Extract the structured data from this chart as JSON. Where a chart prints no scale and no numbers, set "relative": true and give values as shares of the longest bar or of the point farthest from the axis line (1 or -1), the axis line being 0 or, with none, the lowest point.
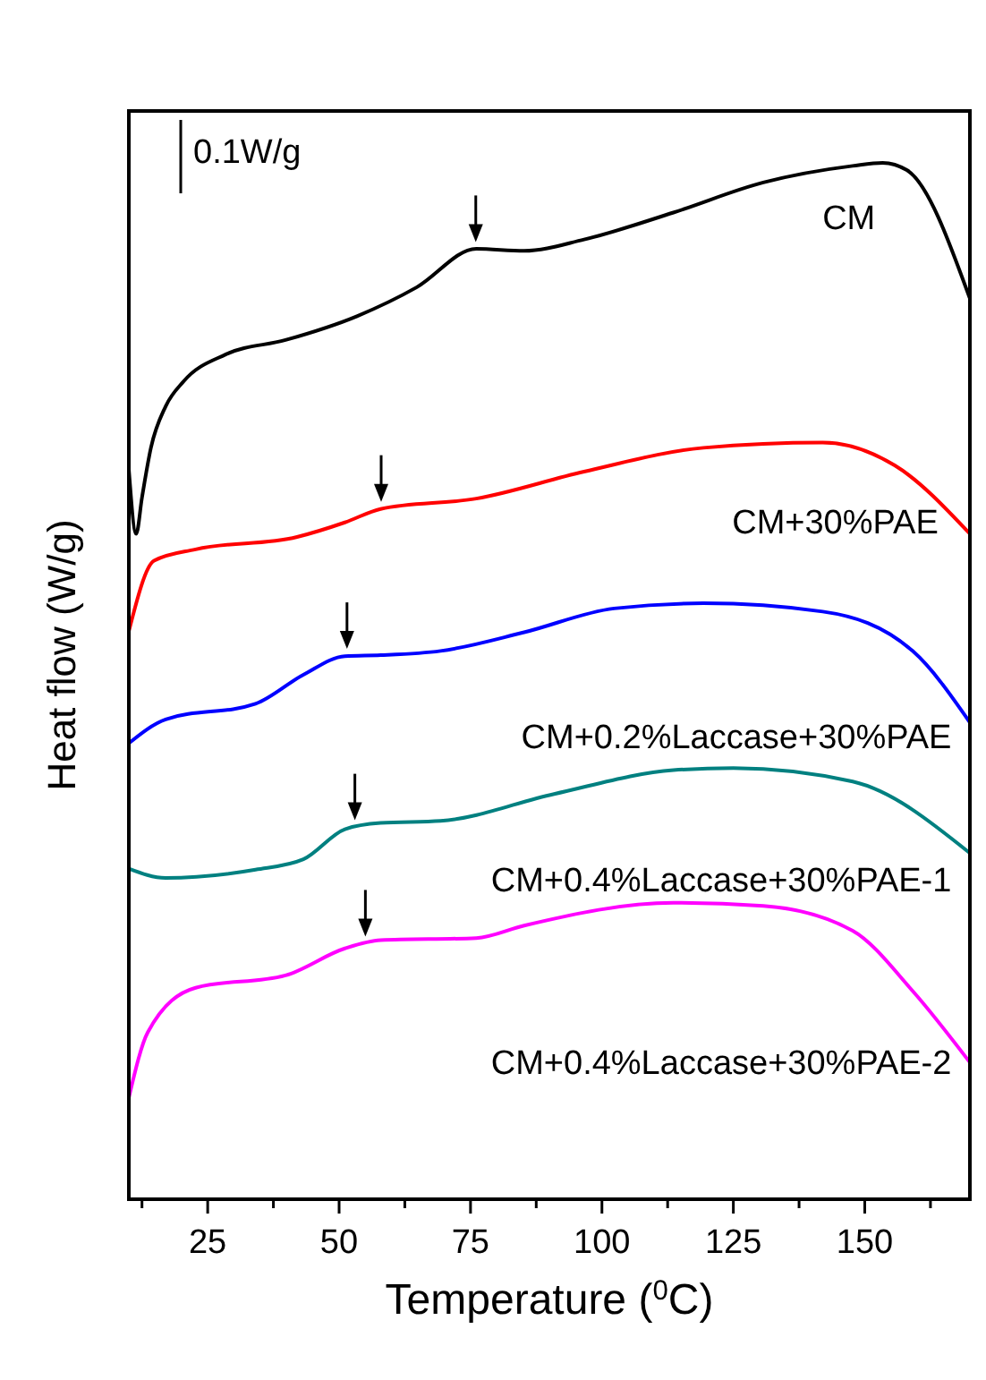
{
  "chart_data": {
    "type": "line",
    "xlabel": "Temperature ($^{0}$C)",
    "ylabel": "Heat flow (W/g)",
    "relative": true,
    "tick_labels": "x",
    "xlim": [
      10,
      170
    ],
    "xticks": [
      {
        "value": 12.5,
        "label": null
      },
      25,
      {
        "value": 37.5,
        "label": null
      },
      50,
      {
        "value": 62.5,
        "label": null
      },
      75,
      {
        "value": 87.5,
        "label": null
      },
      100,
      {
        "value": 112.5,
        "label": null
      },
      125,
      {
        "value": 137.5,
        "label": null
      },
      150,
      {
        "value": 162.5,
        "label": null
      }
    ],
    "annotations": [
      "0.1W/g"
    ],
    "grid": false,
    "series": [
      {
        "name": "CM",
        "color": "#000000",
        "x": [
          10,
          11.4,
          12.5,
          14.2,
          17,
          20.4,
          28.4,
          39.8,
          53.4,
          64.8,
          76.1,
          85.2,
          96.6,
          113.6,
          130.7,
          147.7,
          153.4,
          158,
          170
        ],
        "values": [
          0.704,
          0.642,
          0.677,
          0.725,
          0.765,
          0.789,
          0.815,
          0.829,
          0.852,
          0.88,
          0.917,
          0.915,
          0.926,
          0.952,
          0.981,
          0.997,
          1.0,
          0.993,
          0.869
        ]
      },
      {
        "name": "CM+30%PAE",
        "color": "#ff0000",
        "x": [
          10,
          14.8,
          22.7,
          42,
          51.1,
          57.9,
          76.1,
          96.6,
          119.3,
          142,
          155.7,
          170
        ],
        "values": [
          0.548,
          0.616,
          0.627,
          0.639,
          0.653,
          0.666,
          0.676,
          0.702,
          0.725,
          0.73,
          0.708,
          0.642
        ]
      },
      {
        "name": "CM+0.2%Laccase+30%PAE",
        "color": "#0000ff",
        "x": [
          10,
          17,
          34.1,
          43.2,
          51.1,
          57.9,
          69.3,
          85.2,
          102.3,
          119.3,
          142,
          159.1,
          170
        ],
        "values": [
          0.44,
          0.463,
          0.478,
          0.506,
          0.524,
          0.525,
          0.529,
          0.547,
          0.57,
          0.575,
          0.567,
          0.529,
          0.46
        ]
      },
      {
        "name": "CM+0.4%Laccase+30%PAE-1",
        "color": "#008080",
        "x": [
          10,
          17,
          34.1,
          43.2,
          51.1,
          57.9,
          69.3,
          90.9,
          113.6,
          125,
          147.7,
          170
        ],
        "values": [
          0.319,
          0.31,
          0.318,
          0.328,
          0.357,
          0.363,
          0.365,
          0.391,
          0.414,
          0.416,
          0.403,
          0.334
        ]
      },
      {
        "name": "CM+0.4%Laccase+30%PAE-2",
        "color": "#ff00ff",
        "x": [
          10,
          13.6,
          22.7,
          39.8,
          51.1,
          57.9,
          76.1,
          85.2,
          113.6,
          130.7,
          147.7,
          159.1,
          170
        ],
        "values": [
          0.098,
          0.161,
          0.204,
          0.216,
          0.242,
          0.25,
          0.252,
          0.264,
          0.286,
          0.283,
          0.259,
          0.201,
          0.132
        ]
      }
    ]
  }
}
